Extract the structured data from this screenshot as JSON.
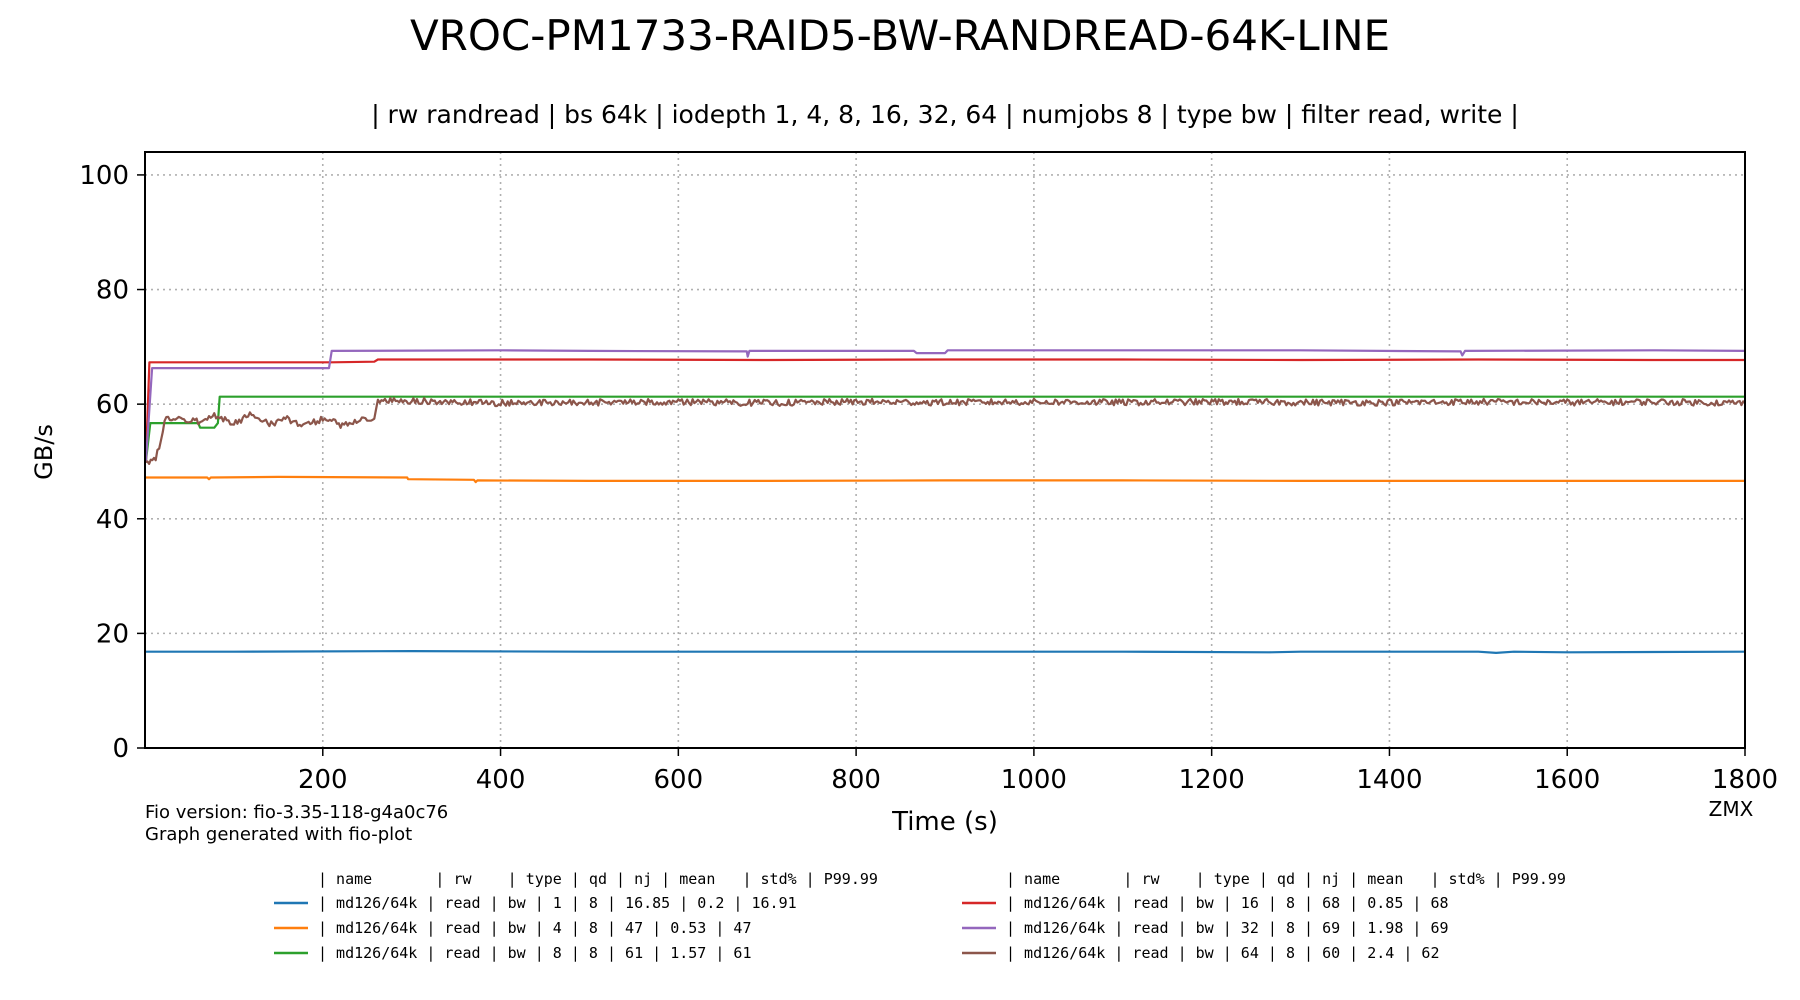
{
  "chart_data": {
    "type": "line",
    "title": "VROC-PM1733-RAID5-BW-RANDREAD-64K-LINE",
    "subtitle": "| rw randread | bs 64k | iodepth 1, 4, 8, 16, 32, 64 | numjobs 8 | type bw | filter read, write |",
    "xlabel": "Time (s)",
    "ylabel": "GB/s",
    "xlim": [
      0,
      1800
    ],
    "ylim": [
      0,
      104
    ],
    "x_ticks": [
      200,
      400,
      600,
      800,
      1000,
      1200,
      1400,
      1600,
      1800
    ],
    "y_ticks": [
      0,
      20,
      40,
      60,
      80,
      100
    ],
    "grid": true,
    "series": [
      {
        "color": "#1f77b4",
        "points": [
          [
            1,
            16.8
          ],
          [
            100,
            16.8
          ],
          [
            300,
            16.9
          ],
          [
            500,
            16.8
          ],
          [
            700,
            16.8
          ],
          [
            900,
            16.8
          ],
          [
            1100,
            16.8
          ],
          [
            1265,
            16.7
          ],
          [
            1300,
            16.8
          ],
          [
            1500,
            16.8
          ],
          [
            1520,
            16.6
          ],
          [
            1540,
            16.8
          ],
          [
            1600,
            16.7
          ],
          [
            1800,
            16.8
          ]
        ]
      },
      {
        "color": "#ff7f0e",
        "points": [
          [
            1,
            47.2
          ],
          [
            70,
            47.2
          ],
          [
            72,
            46.9
          ],
          [
            74,
            47.2
          ],
          [
            150,
            47.3
          ],
          [
            295,
            47.2
          ],
          [
            296,
            46.9
          ],
          [
            370,
            46.8
          ],
          [
            372,
            46.4
          ],
          [
            374,
            46.7
          ],
          [
            500,
            46.6
          ],
          [
            700,
            46.6
          ],
          [
            900,
            46.7
          ],
          [
            1100,
            46.7
          ],
          [
            1300,
            46.6
          ],
          [
            1500,
            46.6
          ],
          [
            1700,
            46.6
          ],
          [
            1800,
            46.6
          ]
        ]
      },
      {
        "color": "#2ca02c",
        "points": [
          [
            1,
            50
          ],
          [
            6,
            56.7
          ],
          [
            60,
            56.7
          ],
          [
            62,
            55.9
          ],
          [
            78,
            55.9
          ],
          [
            82,
            56.7
          ],
          [
            84,
            61.3
          ],
          [
            300,
            61.3
          ],
          [
            500,
            61.3
          ],
          [
            700,
            61.3
          ],
          [
            900,
            61.3
          ],
          [
            1100,
            61.3
          ],
          [
            1300,
            61.3
          ],
          [
            1500,
            61.3
          ],
          [
            1700,
            61.3
          ],
          [
            1800,
            61.3
          ]
        ]
      },
      {
        "color": "#d62728",
        "points": [
          [
            1,
            50
          ],
          [
            5,
            67.3
          ],
          [
            200,
            67.3
          ],
          [
            210,
            67.3
          ],
          [
            258,
            67.4
          ],
          [
            262,
            67.8
          ],
          [
            500,
            67.8
          ],
          [
            700,
            67.7
          ],
          [
            900,
            67.8
          ],
          [
            1100,
            67.8
          ],
          [
            1300,
            67.7
          ],
          [
            1500,
            67.8
          ],
          [
            1700,
            67.7
          ],
          [
            1800,
            67.7
          ]
        ]
      },
      {
        "color": "#9467bd",
        "points": [
          [
            1,
            50
          ],
          [
            8,
            66.3
          ],
          [
            207,
            66.3
          ],
          [
            210,
            69.3
          ],
          [
            400,
            69.4
          ],
          [
            500,
            69.3
          ],
          [
            677,
            69.2
          ],
          [
            678,
            68.3
          ],
          [
            680,
            69.3
          ],
          [
            865,
            69.3
          ],
          [
            868,
            68.9
          ],
          [
            900,
            68.9
          ],
          [
            903,
            69.4
          ],
          [
            1100,
            69.4
          ],
          [
            1300,
            69.4
          ],
          [
            1480,
            69.2
          ],
          [
            1482,
            68.5
          ],
          [
            1485,
            69.3
          ],
          [
            1700,
            69.4
          ],
          [
            1800,
            69.3
          ]
        ]
      },
      {
        "color": "#8c564b",
        "points": [
          [
            1,
            49.5
          ],
          [
            12,
            50.5
          ],
          [
            18,
            53.5
          ],
          [
            22,
            57.2
          ],
          [
            40,
            57.5
          ],
          [
            60,
            57.0
          ],
          [
            80,
            58.0
          ],
          [
            100,
            56.6
          ],
          [
            120,
            58.3
          ],
          [
            140,
            56.5
          ],
          [
            160,
            57.4
          ],
          [
            180,
            56.2
          ],
          [
            200,
            57.5
          ],
          [
            220,
            56.4
          ],
          [
            240,
            57.2
          ],
          [
            258,
            57.0
          ],
          [
            262,
            60.5
          ],
          [
            300,
            60.6
          ],
          [
            400,
            60.2
          ],
          [
            500,
            60.3
          ],
          [
            600,
            60.4
          ],
          [
            700,
            60.2
          ],
          [
            800,
            60.4
          ],
          [
            900,
            60.3
          ],
          [
            1000,
            60.4
          ],
          [
            1100,
            60.3
          ],
          [
            1200,
            60.4
          ],
          [
            1300,
            60.3
          ],
          [
            1400,
            60.3
          ],
          [
            1500,
            60.4
          ],
          [
            1600,
            60.3
          ],
          [
            1700,
            60.4
          ],
          [
            1800,
            60.2
          ]
        ],
        "noise": 0.55
      }
    ]
  },
  "footer": {
    "fio_version": "Fio version: fio-3.35-118-g4a0c76",
    "generated_with": "Graph generated with fio-plot",
    "brand": "ZMX"
  },
  "legend_table": {
    "header": "| name       | rw    | type | qd | nj | mean   | std% | P99.99",
    "rows": [
      {
        "color": "#1f77b4",
        "text": "|  md126/64k |  read |   bw |  1 |  8 |  16.85 |  0.2 |  16.91"
      },
      {
        "color": "#ff7f0e",
        "text": "|  md126/64k |  read |   bw |  4 |  8 |     47 | 0.53 |     47"
      },
      {
        "color": "#2ca02c",
        "text": "|  md126/64k |  read |   bw |  8 |  8 |     61 | 1.57 |     61"
      },
      {
        "color": "#d62728",
        "text": "|  md126/64k |  read |   bw | 16 |  8 |     68 | 0.85 |     68"
      },
      {
        "color": "#9467bd",
        "text": "|  md126/64k |  read |   bw | 32 |  8 |     69 | 1.98 |     69"
      },
      {
        "color": "#8c564b",
        "text": "|  md126/64k |  read |   bw | 64 |  8 |     60 |  2.4 |     62"
      }
    ]
  }
}
